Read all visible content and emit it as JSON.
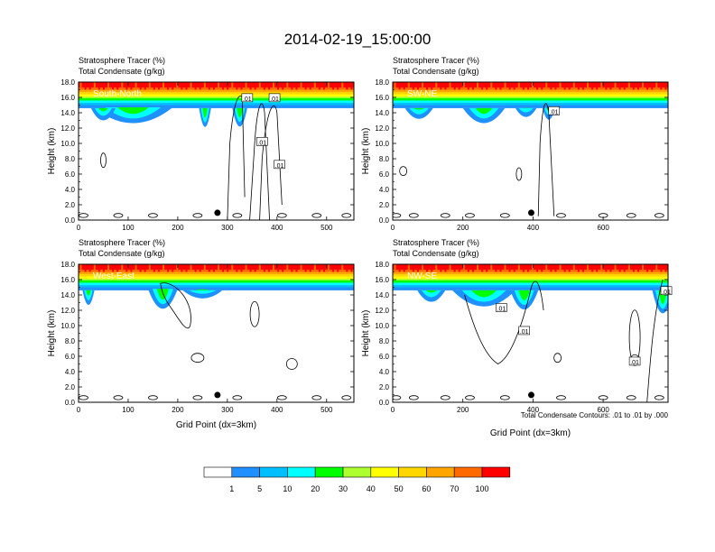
{
  "page": {
    "title": "2014-02-19_15:00:00",
    "footer_note": "Total Condensate Contours: .01 to .01 by .000"
  },
  "colors": {
    "scale": [
      "#ffffff",
      "#1e90ff",
      "#00bfff",
      "#00ffff",
      "#00e68a",
      "#00ff00",
      "#adff2f",
      "#ffff00",
      "#ffd700",
      "#ffa500",
      "#ff6a00",
      "#ff0000"
    ],
    "contour": "#000000"
  },
  "colorbar": {
    "labels": [
      "1",
      "5",
      "10",
      "20",
      "30",
      "40",
      "50",
      "60",
      "70",
      "100"
    ]
  },
  "chart_data": [
    {
      "type": "heatmap",
      "panel_label": "South-North",
      "title_lines": [
        "Stratosphere Tracer   (%)",
        "Total Condensate   (g/kg)"
      ],
      "ylabel": "Height (km)",
      "xlabel": "",
      "xlim": [
        0,
        555
      ],
      "ylim": [
        0,
        18
      ],
      "x_ticks": [
        "0",
        "100",
        "200",
        "300",
        "400",
        "500"
      ],
      "y_ticks": [
        "0.0",
        "2.0",
        "4.0",
        "6.0",
        "8.0",
        "10.0",
        "12.0",
        "14.0",
        "16.0",
        "18.0"
      ],
      "contour_labels": [
        ".01",
        ".01",
        ".01",
        ".01"
      ],
      "marker_x": 280
    },
    {
      "type": "heatmap",
      "panel_label": "SW-NE",
      "title_lines": [
        "Stratosphere Tracer   (%)",
        "Total Condensate   (g/kg)"
      ],
      "ylabel": "Height (km)",
      "xlabel": "",
      "xlim": [
        0,
        785
      ],
      "ylim": [
        0,
        18
      ],
      "x_ticks": [
        "0",
        "200",
        "400",
        "600"
      ],
      "y_ticks": [
        "0.0",
        "2.0",
        "4.0",
        "6.0",
        "8.0",
        "10.0",
        "12.0",
        "14.0",
        "16.0",
        "18.0"
      ],
      "contour_labels": [
        ".01"
      ],
      "marker_x": 395
    },
    {
      "type": "heatmap",
      "panel_label": "West-East",
      "title_lines": [
        "Stratosphere Tracer   (%)",
        "Total Condensate   (g/kg)"
      ],
      "ylabel": "Height (km)",
      "xlabel": "Grid Point (dx=3km)",
      "xlim": [
        0,
        555
      ],
      "ylim": [
        0,
        18
      ],
      "x_ticks": [
        "0",
        "100",
        "200",
        "300",
        "400",
        "500"
      ],
      "y_ticks": [
        "0.0",
        "2.0",
        "4.0",
        "6.0",
        "8.0",
        "10.0",
        "12.0",
        "14.0",
        "16.0",
        "18.0"
      ],
      "contour_labels": [],
      "marker_x": 280
    },
    {
      "type": "heatmap",
      "panel_label": "NW-SE",
      "title_lines": [
        "Stratosphere Tracer   (%)",
        "Total Condensate   (g/kg)"
      ],
      "ylabel": "Height (km)",
      "xlabel": "Grid Point (dx=3km)",
      "xlim": [
        0,
        785
      ],
      "ylim": [
        0,
        18
      ],
      "x_ticks": [
        "0",
        "200",
        "400",
        "600"
      ],
      "y_ticks": [
        "0.0",
        "2.0",
        "4.0",
        "6.0",
        "8.0",
        "10.0",
        "12.0",
        "14.0",
        "16.0",
        "18.0"
      ],
      "contour_labels": [
        ".01",
        ".01",
        ".01",
        ".01"
      ],
      "marker_x": 395
    }
  ]
}
